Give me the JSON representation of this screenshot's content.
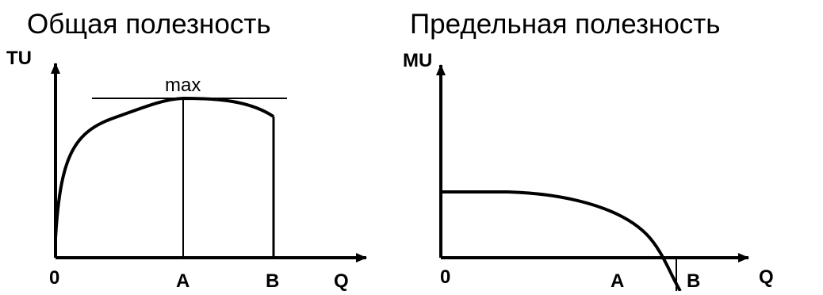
{
  "panels": [
    {
      "title": "Общая полезность",
      "y_axis_label": "TU",
      "x_axis_label": "Q",
      "origin_label": "0",
      "point_labels": [
        "A",
        "B"
      ],
      "annotation": "max"
    },
    {
      "title": "Предельная полезность",
      "y_axis_label": "MU",
      "x_axis_label": "Q",
      "origin_label": "0",
      "point_labels": [
        "A",
        "B"
      ]
    }
  ],
  "colors": {
    "line": "#000000",
    "background": "#ffffff"
  }
}
